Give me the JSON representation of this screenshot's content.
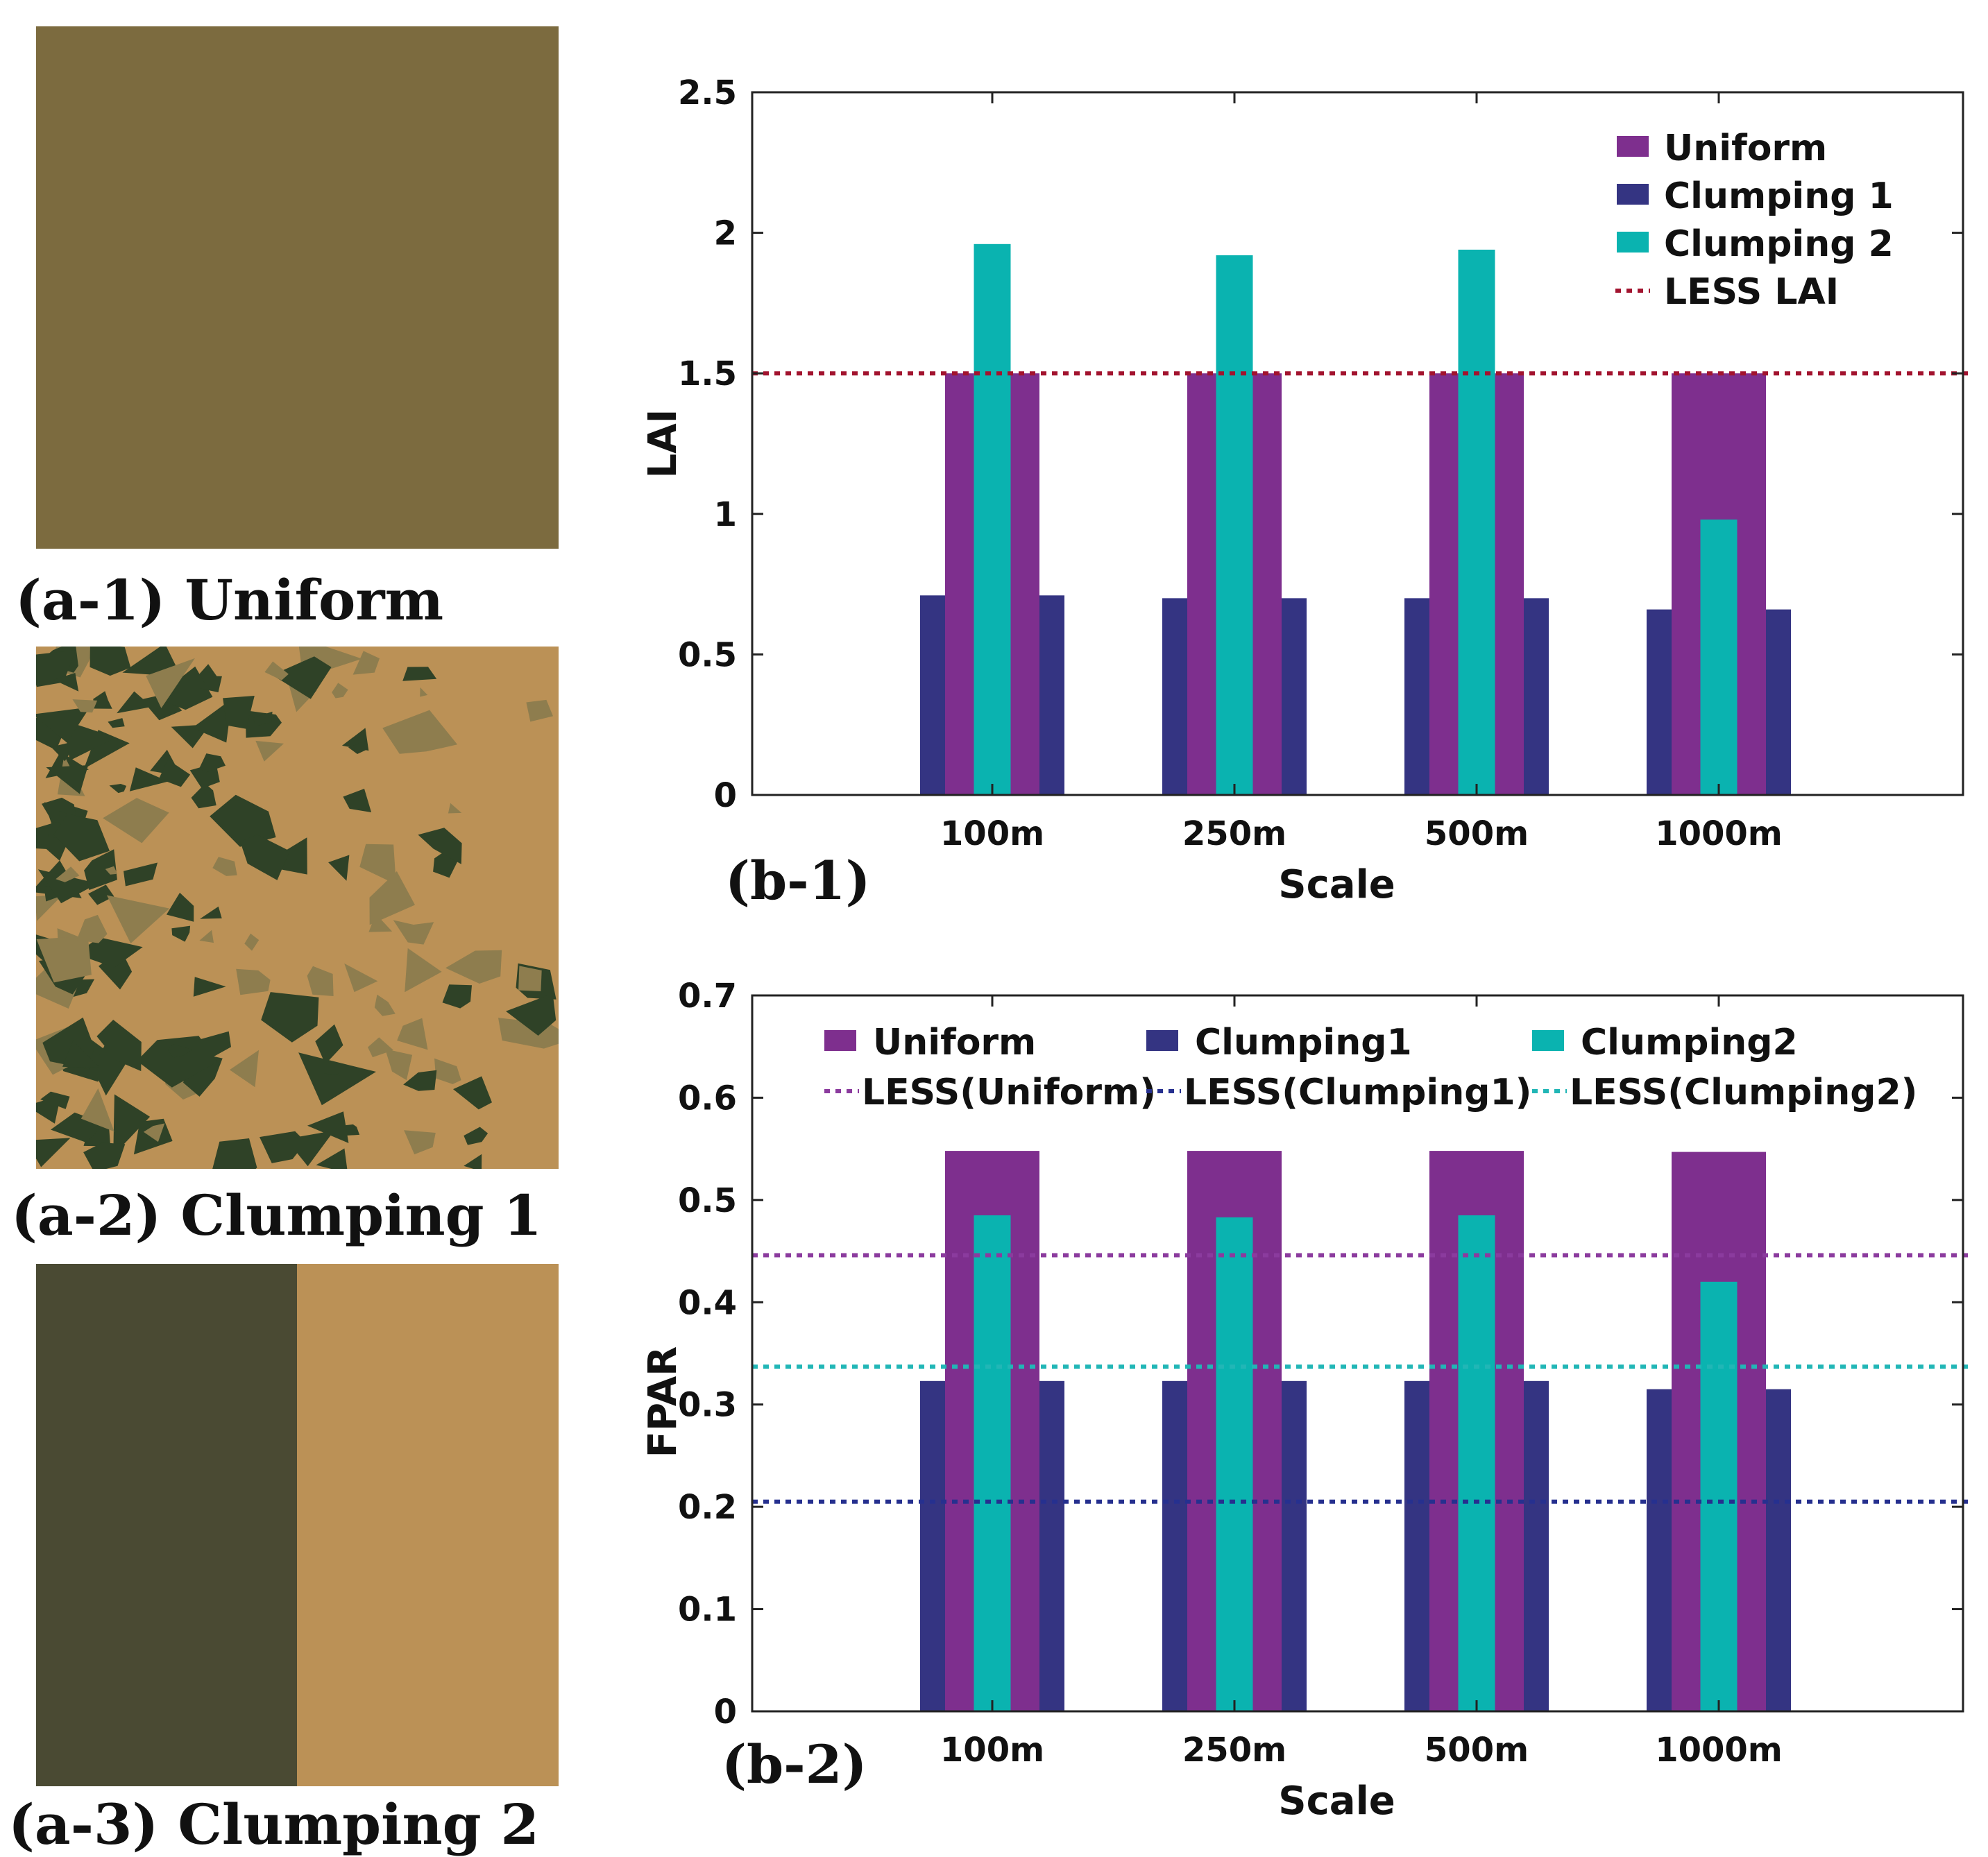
{
  "scenes": [
    {
      "caption": "(a-1) Uniform",
      "pattern": "uniform"
    },
    {
      "caption": "(a-2) Clumping 1",
      "pattern": "clumping-1"
    },
    {
      "caption": "(a-3) Clumping 2",
      "pattern": "clumping-2"
    }
  ],
  "colors": {
    "uniform": "#7e2f8e",
    "clumping1": "#343482",
    "clumping2": "#0ab3b0",
    "less_lai": "#a2142f",
    "less_uniform": "#8b3b9e",
    "less_clumping1": "#26308f",
    "less_clumping2": "#21b6b6",
    "scene_uniform": "#7c6b3f",
    "scene_soil": "#bb9156",
    "scene_canopy": "#4a4a33",
    "scene_patch_dark": "#2f4227",
    "scene_patch_light": "#8e7d4e"
  },
  "chart_data": [
    {
      "panel": "(b-1)",
      "type": "bar",
      "categories": [
        "100m",
        "250m",
        "500m",
        "1000m"
      ],
      "series": [
        {
          "name": "Uniform",
          "values": [
            1.5,
            1.5,
            1.5,
            1.5
          ]
        },
        {
          "name": "Clumping 1",
          "values": [
            0.71,
            0.7,
            0.7,
            0.66
          ]
        },
        {
          "name": "Clumping 2",
          "values": [
            1.96,
            1.92,
            1.94,
            0.98
          ]
        }
      ],
      "reference_lines": [
        {
          "name": "LESS LAI",
          "value": 1.5
        }
      ],
      "xlabel": "Scale",
      "ylabel": "LAI",
      "ylim": [
        0,
        2.5
      ],
      "yticks": [
        "0",
        "0.5",
        "1",
        "1.5",
        "2",
        "2.5"
      ],
      "legend": "top-right"
    },
    {
      "panel": "(b-2)",
      "type": "bar",
      "categories": [
        "100m",
        "250m",
        "500m",
        "1000m"
      ],
      "series": [
        {
          "name": "Uniform",
          "values": [
            0.548,
            0.548,
            0.548,
            0.547
          ]
        },
        {
          "name": "Clumping1",
          "values": [
            0.323,
            0.323,
            0.323,
            0.315
          ]
        },
        {
          "name": "Clumping2",
          "values": [
            0.485,
            0.483,
            0.485,
            0.42
          ]
        }
      ],
      "reference_lines": [
        {
          "name": "LESS(Uniform)",
          "value": 0.446
        },
        {
          "name": "LESS(Clumping1)",
          "value": 0.205
        },
        {
          "name": "LESS(Clumping2)",
          "value": 0.337
        }
      ],
      "xlabel": "Scale",
      "ylabel": "FPAR",
      "ylim": [
        0,
        0.7
      ],
      "yticks": [
        "0",
        "0.1",
        "0.2",
        "0.3",
        "0.4",
        "0.5",
        "0.6",
        "0.7"
      ],
      "legend": "top"
    }
  ]
}
